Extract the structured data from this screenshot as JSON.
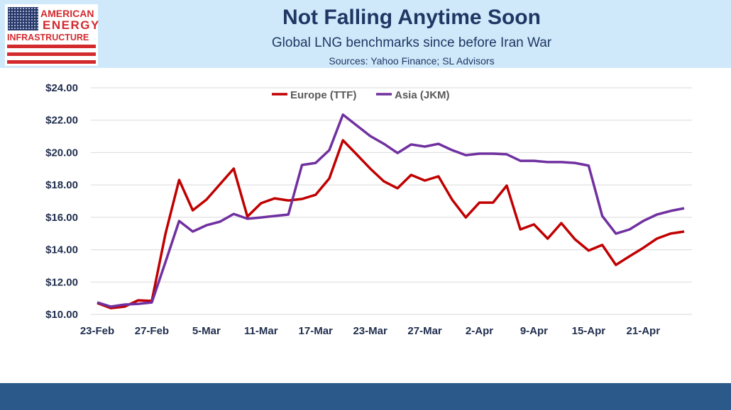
{
  "logo": {
    "line1": "AMERICAN",
    "line2": "ENERGY",
    "line3": "INFRASTRUCTURE"
  },
  "header": {
    "title": "Not Falling Anytime Soon",
    "subtitle": "Global LNG benchmarks since before Iran War",
    "sources": "Sources: Yahoo Finance; SL Advisors"
  },
  "chart_data": {
    "type": "line",
    "title": "",
    "xlabel": "",
    "ylabel": "",
    "ylim": [
      10,
      24
    ],
    "yticks": [
      "$10.00",
      "$12.00",
      "$14.00",
      "$16.00",
      "$18.00",
      "$20.00",
      "$22.00",
      "$24.00"
    ],
    "ytick_values": [
      10,
      12,
      14,
      16,
      18,
      20,
      22,
      24
    ],
    "grid": true,
    "legend_position": "top",
    "x": [
      "23-Feb",
      "24-Feb",
      "25-Feb",
      "26-Feb",
      "27-Feb",
      "2-Mar",
      "3-Mar",
      "4-Mar",
      "5-Mar",
      "6-Mar",
      "9-Mar",
      "10-Mar",
      "11-Mar",
      "12-Mar",
      "13-Mar",
      "16-Mar",
      "17-Mar",
      "18-Mar",
      "19-Mar",
      "20-Mar",
      "23-Mar",
      "24-Mar",
      "25-Mar",
      "26-Mar",
      "27-Mar",
      "30-Mar",
      "31-Mar",
      "1-Apr",
      "2-Apr",
      "6-Apr",
      "7-Apr",
      "8-Apr",
      "9-Apr",
      "10-Apr",
      "13-Apr",
      "14-Apr",
      "15-Apr",
      "16-Apr",
      "17-Apr",
      "20-Apr",
      "21-Apr",
      "22-Apr",
      "23-Apr",
      "24-Apr"
    ],
    "xtick_labels": [
      "23-Feb",
      "27-Feb",
      "5-Mar",
      "11-Mar",
      "17-Mar",
      "23-Mar",
      "27-Mar",
      "2-Apr",
      "9-Apr",
      "15-Apr",
      "21-Apr"
    ],
    "series": [
      {
        "name": "Europe (TTF)",
        "color": "#c00000",
        "values": [
          10.7,
          10.39,
          10.48,
          10.87,
          10.83,
          14.99,
          18.31,
          16.43,
          17.09,
          18.05,
          19.01,
          16.04,
          16.87,
          17.17,
          17.04,
          17.13,
          17.39,
          18.4,
          20.76,
          19.89,
          19.01,
          18.22,
          17.79,
          18.62,
          18.27,
          18.53,
          17.09,
          15.99,
          16.91,
          16.91,
          17.96,
          15.25,
          15.56,
          14.68,
          15.64,
          14.64,
          13.94,
          14.29,
          13.06,
          13.59,
          14.11,
          14.68,
          14.99,
          15.12
        ]
      },
      {
        "name": "Asia (JKM)",
        "color": "#7030a0",
        "values": [
          10.74,
          10.48,
          10.61,
          10.65,
          10.74,
          13.24,
          15.77,
          15.12,
          15.51,
          15.73,
          16.21,
          15.91,
          15.99,
          16.08,
          16.17,
          19.23,
          19.36,
          20.15,
          22.34,
          21.68,
          21.02,
          20.54,
          19.97,
          20.5,
          20.37,
          20.54,
          20.15,
          19.84,
          19.93,
          19.93,
          19.89,
          19.49,
          19.49,
          19.41,
          19.41,
          19.36,
          19.19,
          16.08,
          14.99,
          15.25,
          15.77,
          16.17,
          16.39,
          16.56
        ]
      }
    ]
  },
  "colors": {
    "header_bg": "#cfe9fb",
    "footer_bg": "#2b5a8a",
    "title": "#1f3763"
  }
}
